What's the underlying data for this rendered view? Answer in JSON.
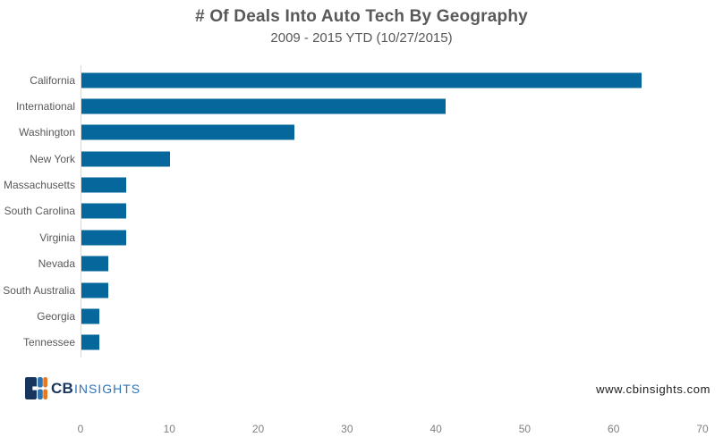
{
  "header": {
    "title": "# Of Deals Into Auto Tech By Geography",
    "subtitle": "2009 - 2015 YTD (10/27/2015)"
  },
  "chart_data": {
    "type": "bar",
    "orientation": "horizontal",
    "title": "# Of Deals Into Auto Tech By Geography",
    "subtitle": "2009 - 2015 YTD (10/27/2015)",
    "categories": [
      "California",
      "International",
      "Washington",
      "New York",
      "Massachusetts",
      "South Carolina",
      "Virginia",
      "Nevada",
      "South Australia",
      "Georgia",
      "Tennessee"
    ],
    "values": [
      63,
      41,
      24,
      10,
      5,
      5,
      5,
      3,
      3,
      2,
      2
    ],
    "xlabel": "",
    "ylabel": "",
    "xlim": [
      0,
      70
    ],
    "xticks": [
      0,
      10,
      20,
      30,
      40,
      50,
      60,
      70
    ],
    "grid": false,
    "legend": false,
    "bar_color": "#05679b",
    "axis_line_color": "#d9d9d9",
    "label_color": "#595959",
    "tick_color": "#808080"
  },
  "footer": {
    "logo_cb": "CB",
    "logo_insights": "INSIGHTS",
    "website": "www.cbinsights.com"
  },
  "colors": {
    "title": "#595959",
    "bar": "#05679b",
    "logo_navy": "#17355e",
    "logo_blue": "#2d74b5",
    "logo_orange": "#e87722"
  }
}
